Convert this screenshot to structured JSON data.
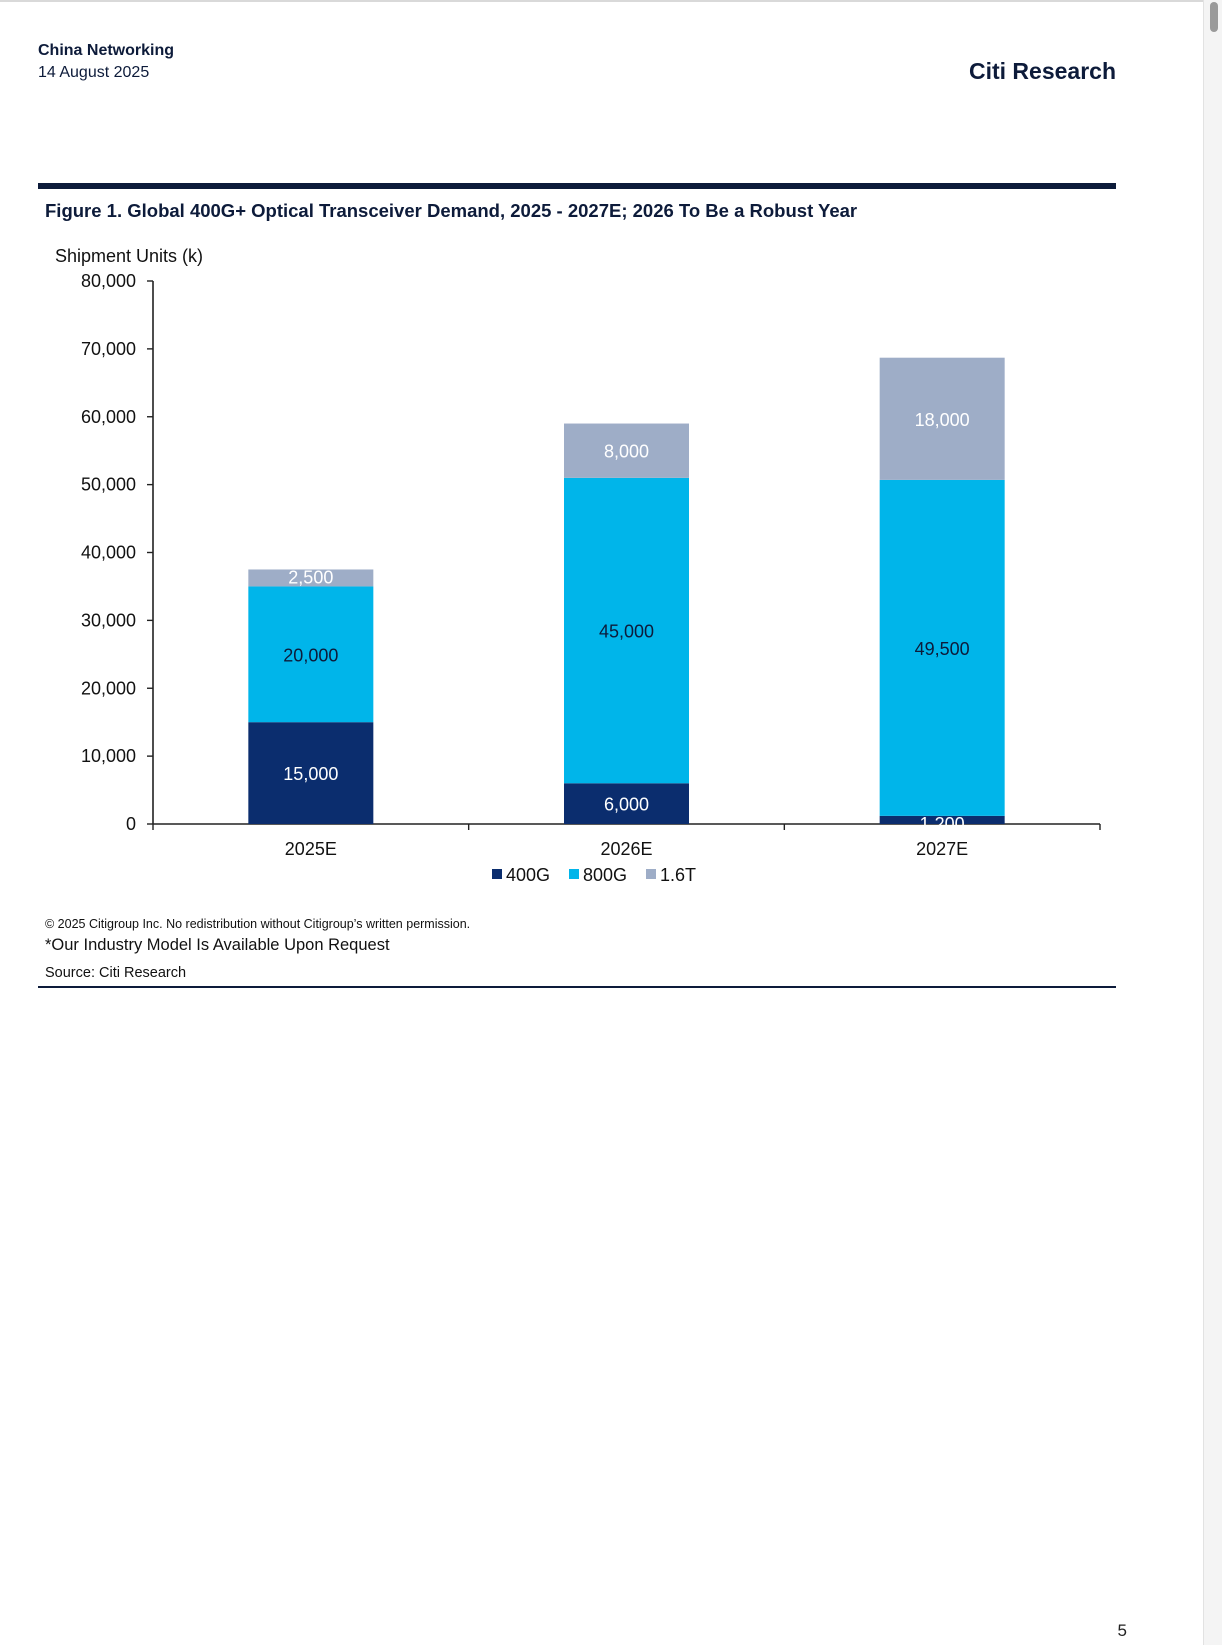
{
  "header": {
    "section": "China Networking",
    "date": "14 August 2025",
    "brand": "Citi Research"
  },
  "figure": {
    "title": "Figure 1. Global 400G+ Optical Transceiver Demand, 2025 - 2027E; 2026 To Be a Robust Year"
  },
  "chart_data": {
    "type": "bar",
    "stacked": true,
    "categories": [
      "2025E",
      "2026E",
      "2027E"
    ],
    "series": [
      {
        "name": "400G",
        "values": [
          15000,
          6000,
          1200
        ],
        "color": "#0b2d6e",
        "label_color": "#ffffff"
      },
      {
        "name": "800G",
        "values": [
          20000,
          45000,
          49500
        ],
        "color": "#00b5ea",
        "label_color": "#0d1b3a"
      },
      {
        "name": "1.6T",
        "values": [
          2500,
          8000,
          18000
        ],
        "color": "#9eadc7",
        "label_color": "#ffffff"
      }
    ],
    "data_labels": [
      [
        "15,000",
        "6,000",
        "1,200"
      ],
      [
        "20,000",
        "45,000",
        "49,500"
      ],
      [
        "2,500",
        "8,000",
        "18,000"
      ]
    ],
    "ylabel": "Shipment Units (k)",
    "xlabel": "",
    "ylim": [
      0,
      80000
    ],
    "yticks": [
      0,
      10000,
      20000,
      30000,
      40000,
      50000,
      60000,
      70000,
      80000
    ],
    "ytick_labels": [
      "0",
      "10,000",
      "20,000",
      "30,000",
      "40,000",
      "50,000",
      "60,000",
      "70,000",
      "80,000"
    ],
    "grid": false,
    "legend": "bottom-center"
  },
  "footer": {
    "copyright": "© 2025 Citigroup Inc. No redistribution without Citigroup’s written permission.",
    "note": "*Our Industry Model Is Available Upon Request",
    "source": "Source: Citi Research",
    "page_number": "5"
  }
}
